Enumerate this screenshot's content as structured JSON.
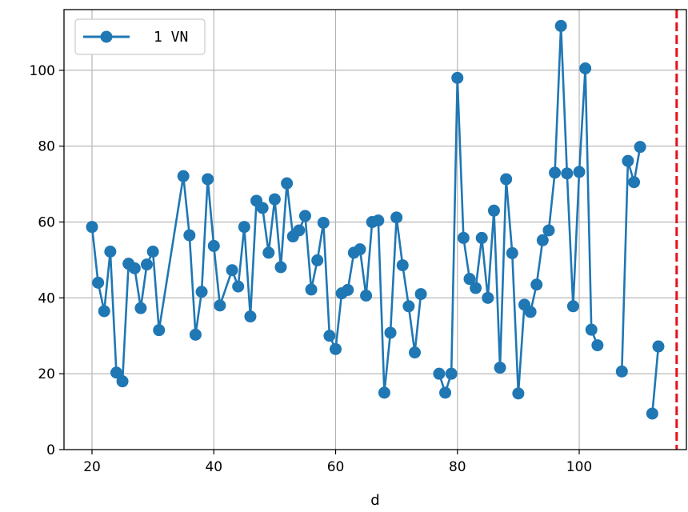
{
  "chart_data": {
    "type": "line",
    "xlabel": "d",
    "ylabel": "",
    "xlim": [
      15.4,
      117.6
    ],
    "ylim": [
      0,
      116
    ],
    "xticks": [
      20,
      40,
      60,
      80,
      100
    ],
    "yticks": [
      0,
      20,
      40,
      60,
      80,
      100
    ],
    "grid": true,
    "legend_position": "top-left",
    "vline": {
      "x": 116,
      "color": "#e8101a",
      "style": "dashed"
    },
    "series": [
      {
        "name": "1 VN",
        "color": "#1f77b4",
        "segments": [
          {
            "x": [
              20,
              21,
              22,
              23,
              24,
              25,
              26,
              27,
              28,
              29,
              30,
              31,
              35,
              36,
              37,
              38,
              39,
              40,
              41,
              43,
              44,
              45,
              46,
              47,
              48,
              49,
              50,
              51,
              52,
              53,
              54,
              55,
              56,
              57,
              58,
              59,
              60,
              61,
              62,
              63,
              64,
              65,
              66,
              67,
              68,
              69,
              70,
              71,
              72,
              73,
              74
            ],
            "y": [
              58.7,
              44,
              36.5,
              52.2,
              20.3,
              18,
              49,
              47.8,
              37.3,
              48.8,
              52.2,
              31.5,
              72.1,
              56.5,
              30.3,
              41.6,
              71.3,
              53.7,
              38,
              47.3,
              43,
              58.7,
              35.1,
              65.6,
              63.7,
              51.9,
              66,
              48.1,
              70.2,
              56.2,
              57.8,
              61.6,
              42.2,
              49.9,
              59.8,
              30,
              26.5,
              41.2,
              42.1,
              51.9,
              52.8,
              40.6,
              60,
              60.4,
              15,
              30.8,
              61.2,
              48.6,
              37.8,
              25.6,
              41
            ]
          },
          {
            "x": [
              77,
              78,
              79,
              80,
              81,
              82,
              83,
              84,
              85,
              86,
              87,
              88,
              89,
              90,
              91,
              92,
              93,
              94,
              95,
              96,
              97,
              98,
              99,
              100,
              101,
              102,
              103
            ],
            "y": [
              20,
              15,
              20,
              98,
              55.8,
              45,
              42.6,
              55.8,
              40,
              63,
              21.6,
              71.3,
              51.8,
              14.8,
              38.2,
              36.3,
              43.5,
              55.2,
              57.8,
              73,
              111.7,
              72.8,
              37.8,
              73.2,
              100.5,
              31.6,
              27.5
            ]
          },
          {
            "x": [
              107,
              108,
              109,
              110
            ],
            "y": [
              20.6,
              76.1,
              70.5,
              79.8
            ]
          },
          {
            "x": [
              112,
              113
            ],
            "y": [
              9.5,
              27.2
            ]
          }
        ]
      }
    ]
  }
}
